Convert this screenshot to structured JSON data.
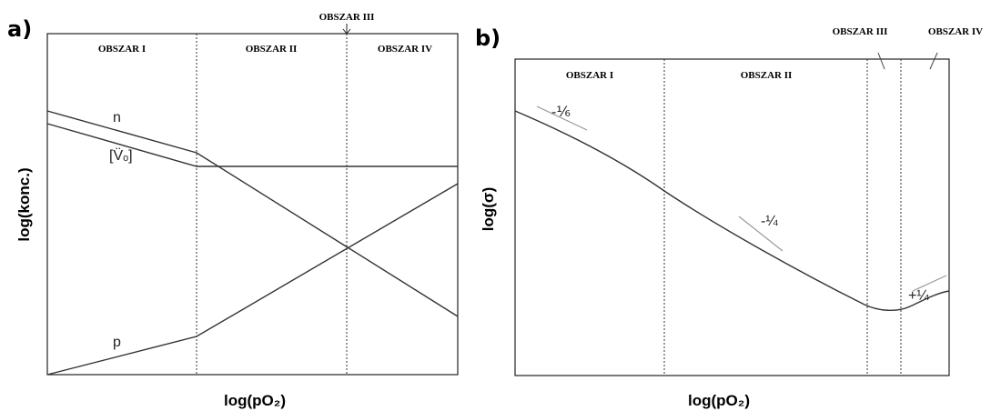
{
  "panels": [
    {
      "label": "a)",
      "regions": [
        "OBSZAR I",
        "OBSZAR II",
        "OBSZAR III",
        "OBSZAR IV"
      ],
      "y_label": "log(konc.)",
      "x_label": "log(pO₂)",
      "curves": [
        "n",
        "[V̈ₒ]",
        "p"
      ]
    },
    {
      "label": "b)",
      "regions": [
        "OBSZAR I",
        "OBSZAR II",
        "OBSZAR III",
        "OBSZAR IV"
      ],
      "y_label": "log(σ)",
      "x_label": "log(pO₂)",
      "slopes": [
        "-⅙",
        "-¼",
        "+¼"
      ]
    }
  ]
}
